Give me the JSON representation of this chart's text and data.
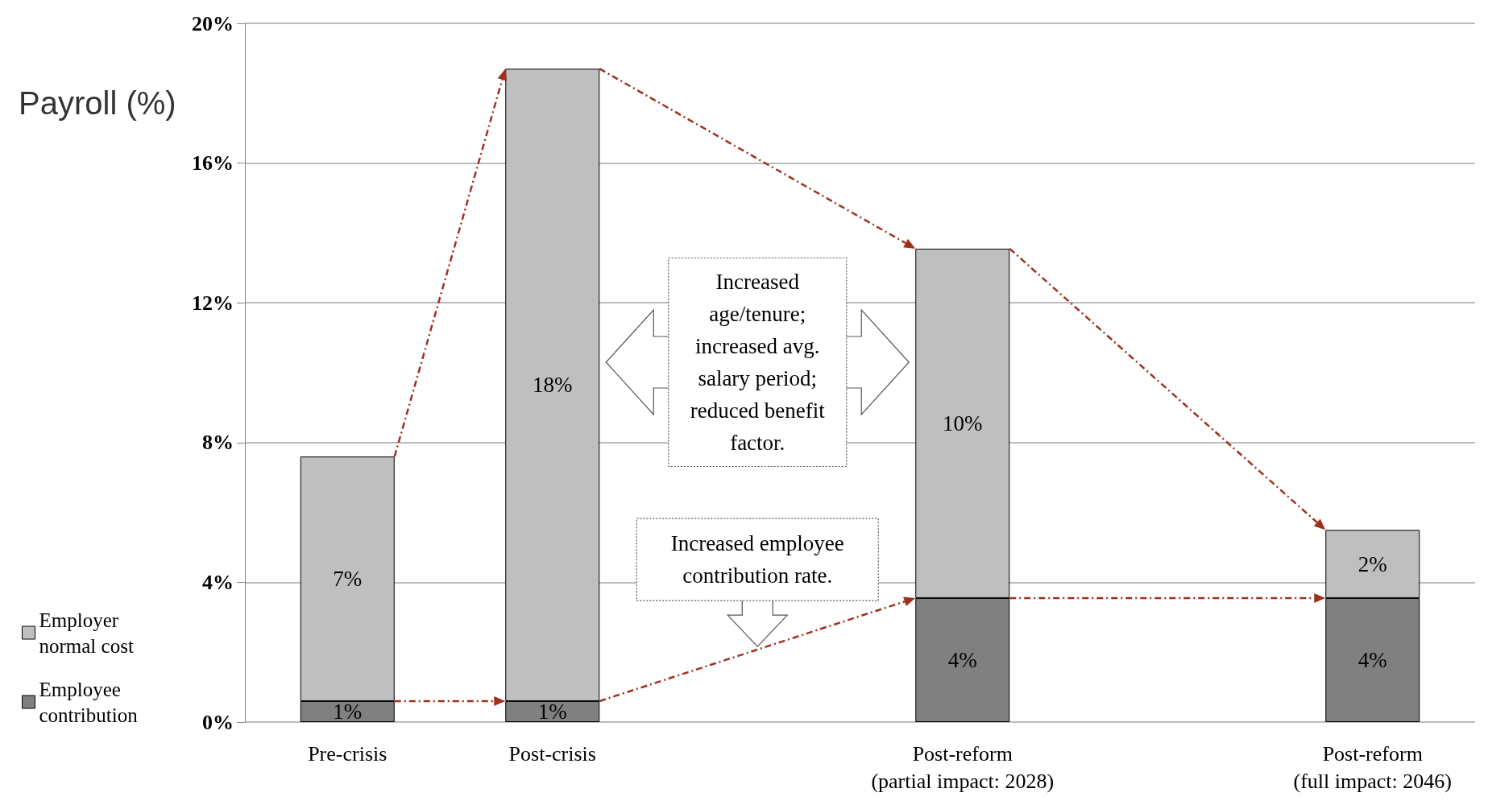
{
  "chart_data": {
    "type": "bar",
    "stacked": true,
    "ylabel": "Payroll (%)",
    "categories": [
      "Pre-crisis",
      "Post-crisis",
      null,
      "Post-reform\n(partial impact: 2028)",
      null,
      "Post-reform\n(full impact: 2046)"
    ],
    "series": [
      {
        "name": "Employee contribution",
        "color": "#808080",
        "values": [
          0.6,
          0.6,
          null,
          3.55,
          null,
          3.55
        ],
        "value_labels": [
          "1%",
          "1%",
          null,
          "4%",
          null,
          "4%"
        ]
      },
      {
        "name": "Employer normal cost",
        "color": "#bfbfbf",
        "values": [
          7.0,
          18.1,
          null,
          10.0,
          null,
          1.95
        ],
        "value_labels": [
          "7%",
          "18%",
          null,
          "10%",
          null,
          "2%"
        ]
      }
    ],
    "ylim": [
      0,
      20
    ],
    "yticks": [
      {
        "value": 0,
        "label": "0%"
      },
      {
        "value": 4,
        "label": "4%"
      },
      {
        "value": 8,
        "label": "8%"
      },
      {
        "value": 12,
        "label": "12%"
      },
      {
        "value": 16,
        "label": "16%"
      },
      {
        "value": 20,
        "label": "20%"
      }
    ],
    "grid": "y",
    "legend": "bottom left",
    "annotations": [
      "Increased age/tenure; increased avg. salary period; reduced benefit factor.",
      "Increased employee contribution rate."
    ]
  }
}
